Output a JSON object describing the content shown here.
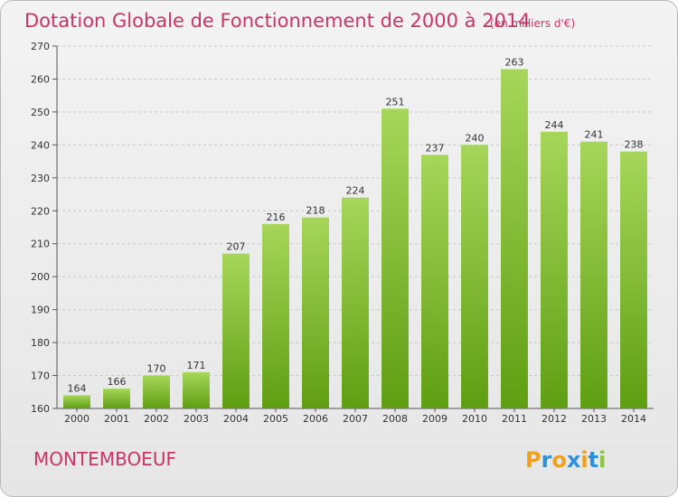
{
  "title": "Dotation Globale de Fonctionnement de 2000 à 2014",
  "subtitle": "(en milliers d'€)",
  "place_name": "MONTEMBOEUF",
  "logo": {
    "letters": [
      "P",
      "r",
      "o",
      "x",
      "i",
      "t",
      "i"
    ],
    "colors": [
      "#f0a020",
      "#2f8fd8",
      "#f0a020",
      "#2f8fd8",
      "#f0a020",
      "#2f8fd8",
      "#8cc63f"
    ]
  },
  "colors": {
    "title": "#cc3366",
    "bar_top": "#a6d65a",
    "bar_bottom": "#5f9e12"
  },
  "chart_data": {
    "type": "bar",
    "title": "Dotation Globale de Fonctionnement de 2000 à 2014",
    "subtitle": "(en milliers d'€)",
    "categories": [
      "2000",
      "2001",
      "2002",
      "2003",
      "2004",
      "2005",
      "2006",
      "2007",
      "2008",
      "2009",
      "2010",
      "2011",
      "2012",
      "2013",
      "2014"
    ],
    "values": [
      164,
      166,
      170,
      171,
      207,
      216,
      218,
      224,
      251,
      237,
      240,
      263,
      244,
      241,
      238
    ],
    "ylim": [
      160,
      270
    ],
    "yticks": [
      160,
      170,
      180,
      190,
      200,
      210,
      220,
      230,
      240,
      250,
      260,
      270
    ],
    "grid": true,
    "legend": "none"
  }
}
